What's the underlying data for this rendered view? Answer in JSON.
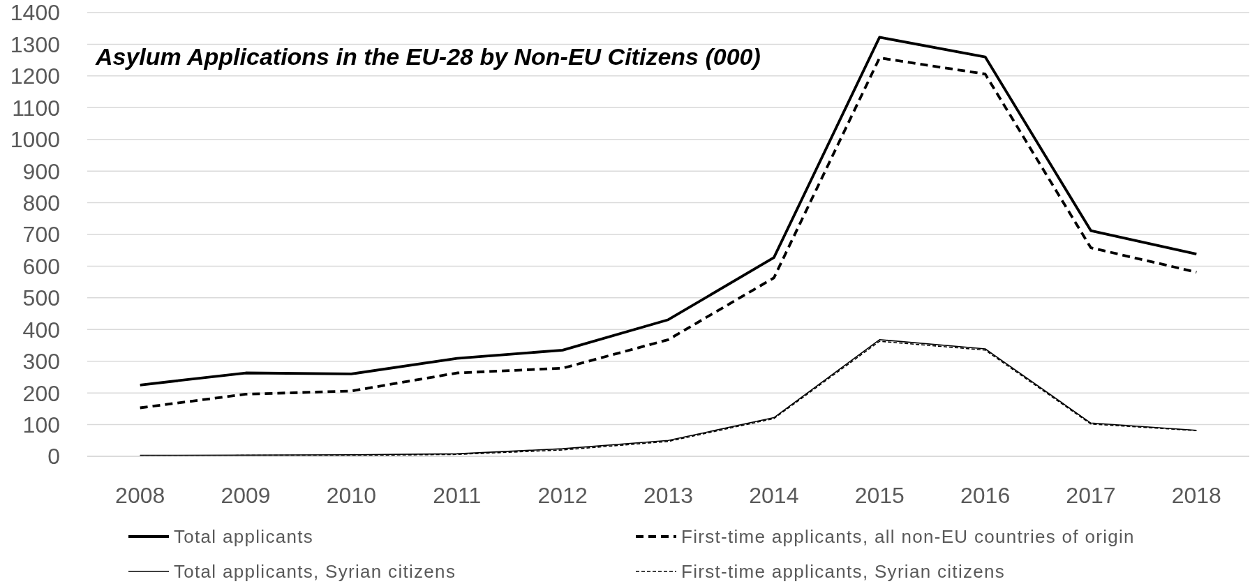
{
  "chart_data": {
    "type": "line",
    "title": "Asylum Applications in the EU-28 by Non-EU Citizens (000)",
    "categories": [
      "2008",
      "2009",
      "2010",
      "2011",
      "2012",
      "2013",
      "2014",
      "2015",
      "2016",
      "2017",
      "2018"
    ],
    "series": [
      {
        "name": "Total applicants",
        "color": "#000000",
        "line_style": "solid",
        "values": [
          225,
          263,
          260,
          309,
          335,
          431,
          627,
          1322,
          1260,
          712,
          638
        ]
      },
      {
        "name": "First-time applicants, all non-EU countries of origin",
        "color": "#000000",
        "line_style": "dashed",
        "values": [
          153,
          196,
          206,
          263,
          278,
          368,
          563,
          1257,
          1206,
          658,
          581
        ]
      },
      {
        "name": "Total applicants, Syrian citizens",
        "color": "#000000",
        "line_style": "solid",
        "values": [
          3,
          4,
          5,
          8,
          24,
          50,
          122,
          368,
          339,
          105,
          82
        ]
      },
      {
        "name": "First-time applicants, Syrian citizens",
        "color": "#000000",
        "line_style": "dashed",
        "values": [
          2,
          3,
          3,
          6,
          20,
          47,
          119,
          363,
          335,
          102,
          81
        ]
      }
    ],
    "ylim": [
      0,
      1400
    ],
    "yticks": [
      0,
      100,
      200,
      300,
      400,
      500,
      600,
      700,
      800,
      900,
      1000,
      1100,
      1200,
      1300,
      1400
    ],
    "grid": "y",
    "legend": "bottom",
    "marker": "none"
  }
}
